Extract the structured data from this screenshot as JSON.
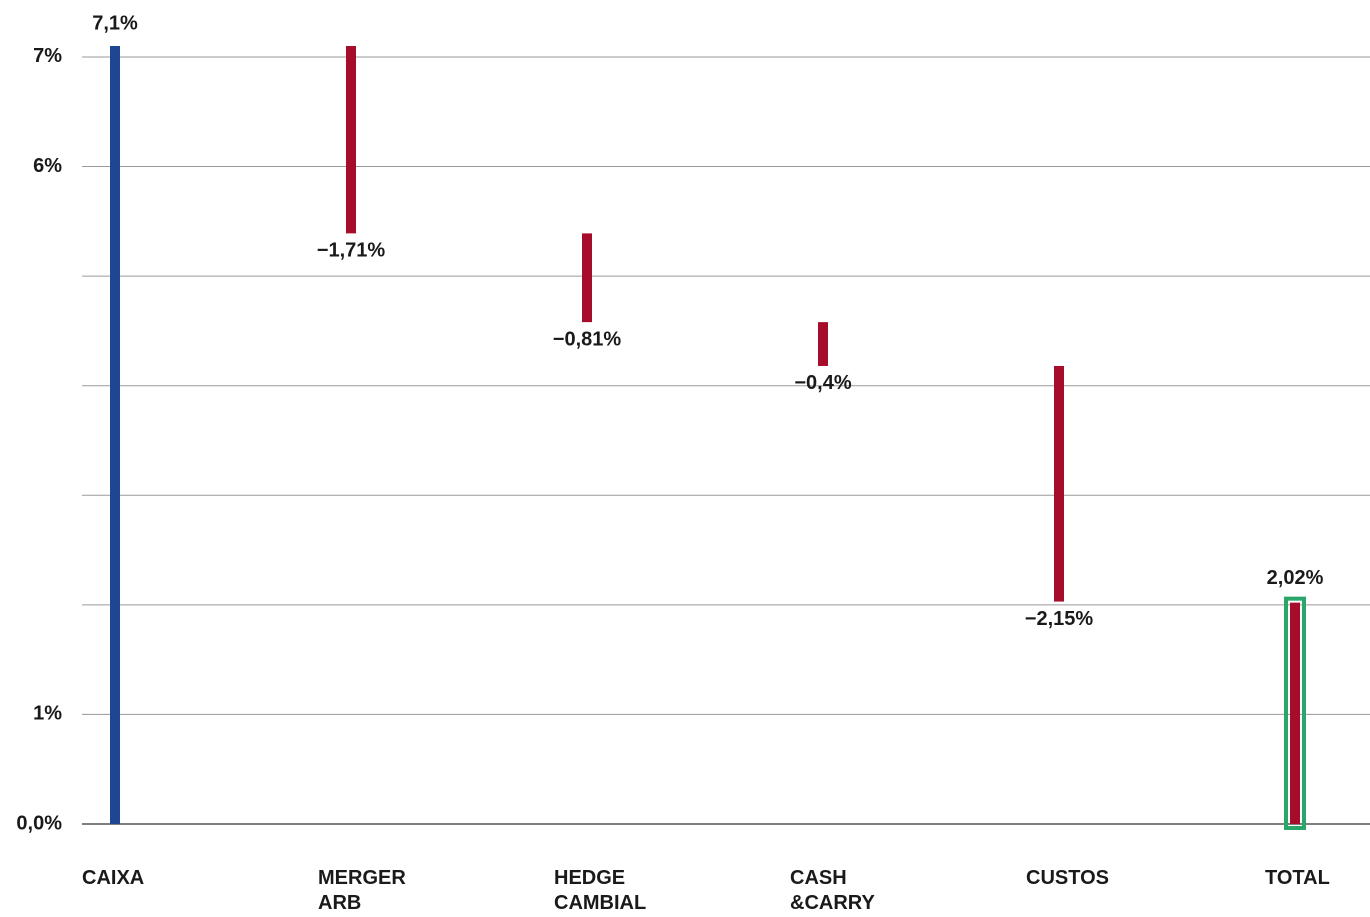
{
  "chart_data": {
    "type": "waterfall",
    "categories": [
      "CAIXA",
      "MERGER ARB",
      "HEDGE CAMBIAL",
      "CASH &CARRY",
      "CUSTOS",
      "TOTAL"
    ],
    "measure": [
      "absolute",
      "relative",
      "relative",
      "relative",
      "relative",
      "total"
    ],
    "values": [
      7.1,
      -1.71,
      -0.81,
      -0.4,
      -2.15,
      2.02
    ],
    "value_labels": [
      "7,1%",
      "−1,71%",
      "−0,81%",
      "−0,4%",
      "−2,15%",
      "2,02%"
    ],
    "colors": {
      "absolute": "#1f4690",
      "relative": "#a50d2a",
      "total": "#a50d2a",
      "total_border": "#2aa66a"
    },
    "ylim": [
      0,
      7.1
    ],
    "yticks": [
      {
        "value": 0,
        "label": "0,0%"
      },
      {
        "value": 1,
        "label": "1%"
      },
      {
        "value": 6,
        "label": "6%"
      },
      {
        "value": 7,
        "label": "7%"
      }
    ],
    "ygrid": [
      1,
      2,
      3,
      4,
      5,
      6,
      7
    ],
    "grid": true
  }
}
